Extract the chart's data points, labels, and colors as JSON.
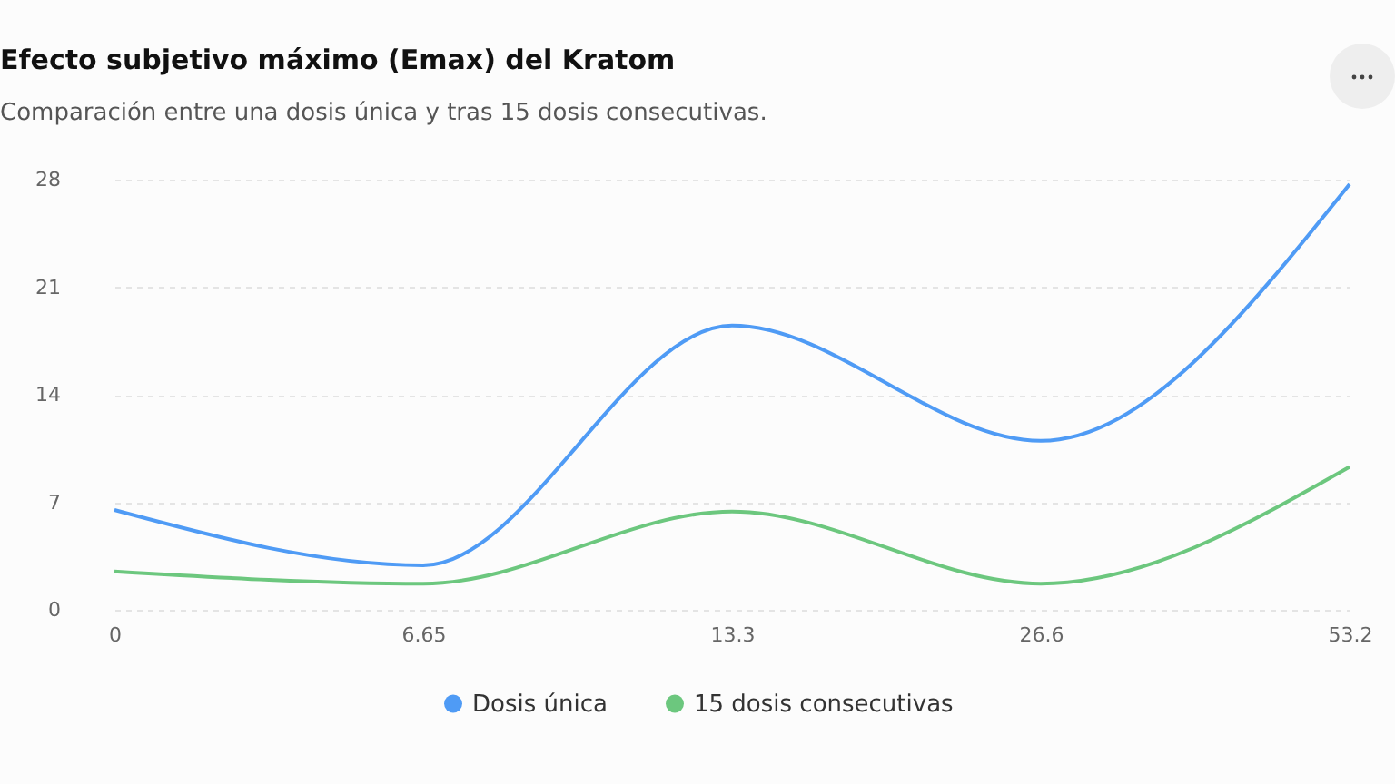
{
  "chart_data": {
    "type": "line",
    "title": "Efecto subjetivo máximo (Emax) del Kratom",
    "subtitle": "Comparación entre una dosis única y tras 15 dosis consecutivas.",
    "categories": [
      "0",
      "6.65",
      "13.3",
      "26.6",
      "53.2"
    ],
    "series": [
      {
        "name": "Dosis única",
        "color": "#4f9bf5",
        "values": [
          6.5,
          2.9,
          18.5,
          11.0,
          27.7
        ]
      },
      {
        "name": "15 dosis consecutivas",
        "color": "#6cc77e",
        "values": [
          2.5,
          1.7,
          6.4,
          1.7,
          9.3
        ]
      }
    ],
    "ylim": [
      0,
      28
    ],
    "yticks": [
      0,
      7,
      14,
      21,
      28
    ],
    "grid": "y",
    "legend": "bottom",
    "marker": "none",
    "line_style": "solid"
  }
}
